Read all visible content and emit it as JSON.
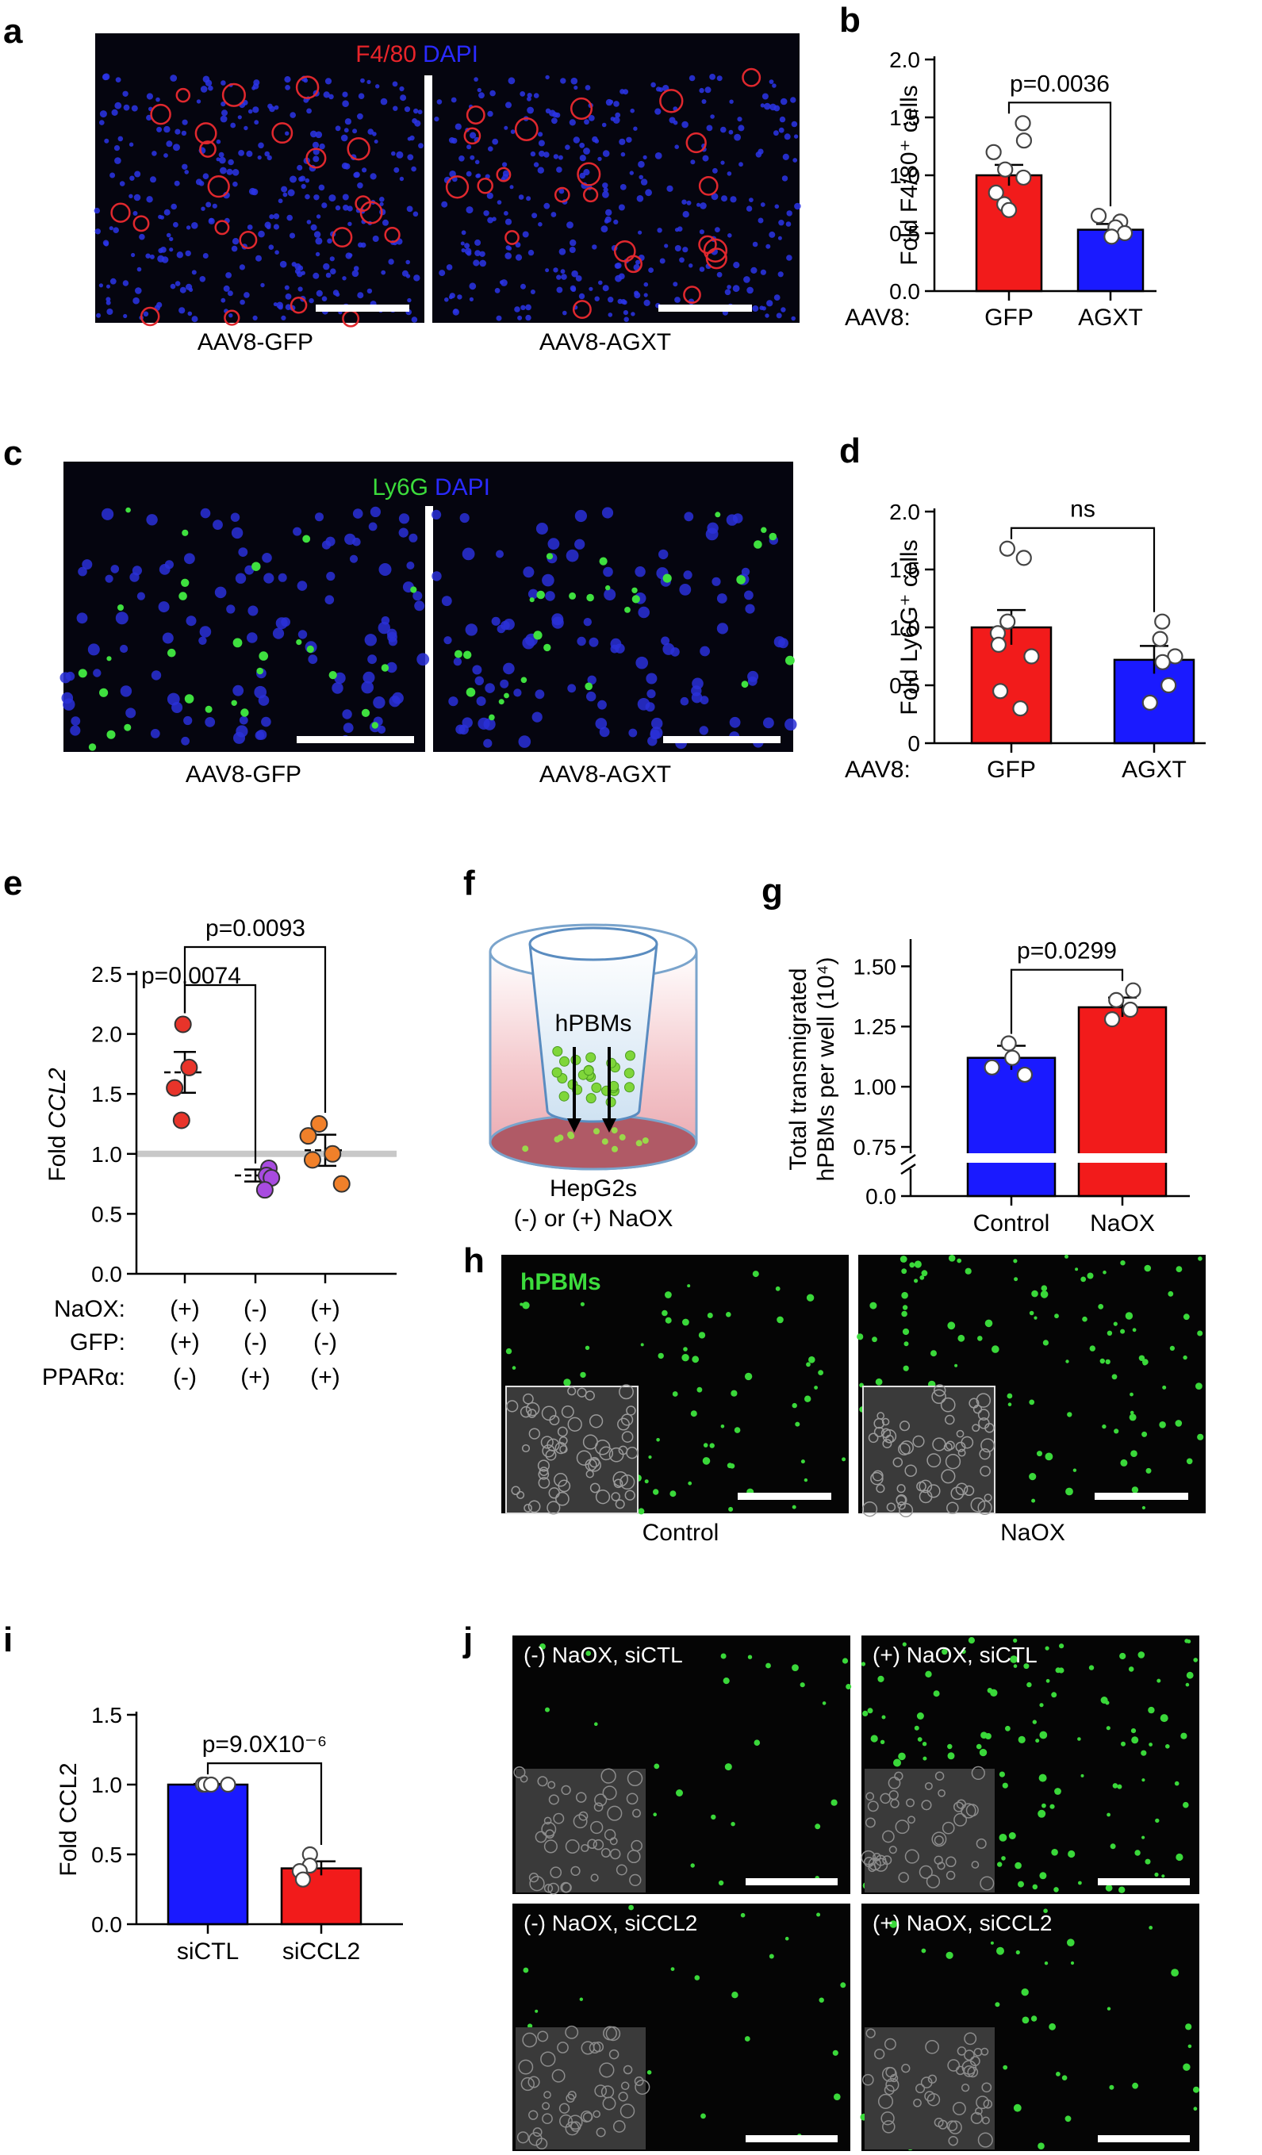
{
  "panels": {
    "a": {
      "letter": "a",
      "stain1": "F4/80",
      "stain2": "DAPI",
      "color1": "#e8242a",
      "color2": "#2a2aff",
      "captions": [
        "AAV8-GFP",
        "AAV8-AGXT"
      ]
    },
    "c": {
      "letter": "c",
      "stain1": "Ly6G",
      "stain2": "DAPI",
      "color1": "#3cdc3c",
      "color2": "#2a2aff",
      "captions": [
        "AAV8-GFP",
        "AAV8-AGXT"
      ]
    },
    "f": {
      "letter": "f",
      "insert_label": "hPBMs",
      "cell_label": "HepG2s",
      "condition": "(-) or (+) NaOX"
    },
    "h": {
      "letter": "h",
      "stain": "hPBMs",
      "stain_color": "#3cdc3c",
      "captions": [
        "Control",
        "NaOX"
      ]
    },
    "j": {
      "letter": "j",
      "labels": [
        "(-) NaOX,  siCTL",
        "(+) NaOX,  siCTL",
        "(-) NaOX,  siCCL2",
        "(+) NaOX,  siCCL2"
      ]
    }
  },
  "chart_data": [
    {
      "id": "b",
      "letter": "b",
      "type": "bar",
      "ylabel": "Fold F4/80⁺ cells",
      "prefix": "AAV8:",
      "categories": [
        "GFP",
        "AGXT"
      ],
      "values": [
        1.0,
        0.53
      ],
      "errors": [
        0.09,
        0.05
      ],
      "points": [
        [
          1.45,
          1.3,
          1.2,
          1.05,
          0.98,
          0.85,
          0.75,
          0.7
        ],
        [
          0.65,
          0.6,
          0.55,
          0.5,
          0.47
        ]
      ],
      "bar_colors": [
        "#f21b1b",
        "#1a1aff"
      ],
      "ylim": [
        0,
        2.0
      ],
      "yticks": [
        "0.0",
        "0.5",
        "1.0",
        "1.5",
        "2.0"
      ],
      "annotation": "p=0.0036"
    },
    {
      "id": "d",
      "letter": "d",
      "type": "bar",
      "ylabel": "Fold Ly6G⁺ cells",
      "prefix": "AAV8:",
      "categories": [
        "GFP",
        "AGXT"
      ],
      "values": [
        1.0,
        0.72
      ],
      "errors": [
        0.15,
        0.12
      ],
      "points": [
        [
          1.68,
          1.6,
          1.05,
          0.95,
          0.85,
          0.75,
          0.45,
          0.3
        ],
        [
          1.05,
          0.9,
          0.75,
          0.7,
          0.5,
          0.35
        ]
      ],
      "bar_colors": [
        "#f21b1b",
        "#1a1aff"
      ],
      "ylim": [
        0,
        2.0
      ],
      "yticks": [
        "0",
        "0.5",
        "1.0",
        "1.5",
        "2.0"
      ],
      "annotation": "ns"
    },
    {
      "id": "e",
      "letter": "e",
      "type": "scatter",
      "ylabel": "Fold CCL2",
      "ylim": [
        0,
        2.5
      ],
      "yticks": [
        "0.0",
        "0.5",
        "1.0",
        "1.5",
        "2.0",
        "2.5"
      ],
      "groups": [
        {
          "mean": 1.68,
          "error": 0.17,
          "color": "#e8342a",
          "points": [
            2.08,
            1.72,
            1.55,
            1.28
          ]
        },
        {
          "mean": 0.82,
          "error": 0.05,
          "color": "#a84be0",
          "points": [
            0.88,
            0.82,
            0.8,
            0.7
          ]
        },
        {
          "mean": 1.03,
          "error": 0.13,
          "color": "#f0802a",
          "points": [
            1.25,
            1.15,
            1.0,
            0.95,
            0.75
          ]
        }
      ],
      "reference_line": 1.0,
      "row_labels": [
        "NaOX:",
        "GFP:",
        "PPARα:"
      ],
      "rows": [
        [
          "(+)",
          "(-)",
          "(+)"
        ],
        [
          "(+)",
          "(-)",
          "(-)"
        ],
        [
          "(-)",
          "(+)",
          "(+)"
        ]
      ],
      "annotations": [
        "p=0.0074",
        "p=0.0093"
      ]
    },
    {
      "id": "g",
      "letter": "g",
      "type": "bar",
      "ylabel_lines": [
        "Total transmigrated",
        "hPBMs per well (10⁴)"
      ],
      "categories": [
        "Control",
        "NaOX"
      ],
      "values": [
        1.12,
        1.33
      ],
      "errors": [
        0.05,
        0.04
      ],
      "points": [
        [
          1.18,
          1.12,
          1.08,
          1.05
        ],
        [
          1.4,
          1.36,
          1.32,
          1.28
        ]
      ],
      "bar_colors": [
        "#1a1aff",
        "#f21b1b"
      ],
      "ylim": [
        0.75,
        1.6
      ],
      "yticks": [
        "0.0",
        "0.75",
        "1.00",
        "1.25",
        "1.50"
      ],
      "axis_break": true,
      "annotation": "p=0.0299"
    },
    {
      "id": "i",
      "letter": "i",
      "type": "bar",
      "ylabel": "Fold CCL2",
      "categories": [
        "siCTL",
        "siCCL2"
      ],
      "values": [
        1.0,
        0.4
      ],
      "errors": [
        0.005,
        0.05
      ],
      "points": [
        [
          1.0,
          1.0,
          1.0,
          1.0
        ],
        [
          0.5,
          0.42,
          0.38,
          0.32
        ]
      ],
      "bar_colors": [
        "#1a1aff",
        "#f21b1b"
      ],
      "ylim": [
        0,
        1.5
      ],
      "yticks": [
        "0.0",
        "0.5",
        "1.0",
        "1.5"
      ],
      "annotation": "p=9.0X10⁻⁶"
    }
  ]
}
